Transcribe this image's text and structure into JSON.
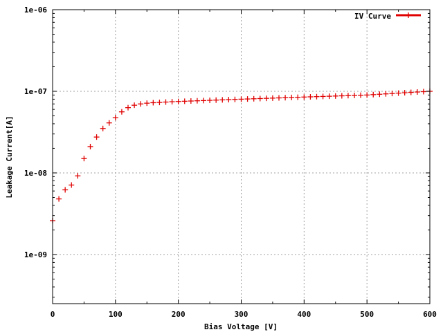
{
  "chart_data": {
    "type": "scatter",
    "title": "",
    "xlabel": "Bias Voltage [V]",
    "ylabel": "Leakage Current[A]",
    "xlim": [
      0,
      600
    ],
    "ylim": [
      2.5e-10,
      1e-06
    ],
    "yscale": "log",
    "grid": true,
    "legend_position": "top-right",
    "x_ticks": [
      0,
      100,
      200,
      300,
      400,
      500,
      600
    ],
    "x_tick_labels": [
      "0",
      "100",
      "200",
      "300",
      "400",
      "500",
      "600"
    ],
    "y_ticks": [
      1e-09,
      1e-08,
      1e-07,
      1e-06
    ],
    "y_tick_labels": [
      "1e-09",
      "1e-08",
      "1e-07",
      "1e-06"
    ],
    "series": [
      {
        "name": "IV Curve",
        "color": "#e00000",
        "marker": "plus",
        "x": [
          0,
          10,
          20,
          30,
          40,
          50,
          60,
          70,
          80,
          90,
          100,
          110,
          120,
          130,
          140,
          150,
          160,
          170,
          180,
          190,
          200,
          210,
          220,
          230,
          240,
          250,
          260,
          270,
          280,
          290,
          300,
          310,
          320,
          330,
          340,
          350,
          360,
          370,
          380,
          390,
          400,
          410,
          420,
          430,
          440,
          450,
          460,
          470,
          480,
          490,
          500,
          510,
          520,
          530,
          540,
          550,
          560,
          570,
          580,
          590,
          600
        ],
        "y": [
          2.6e-09,
          4.8e-09,
          6.2e-09,
          7.1e-09,
          9.2e-09,
          1.5e-08,
          2.1e-08,
          2.75e-08,
          3.5e-08,
          4.1e-08,
          4.75e-08,
          5.6e-08,
          6.3e-08,
          6.75e-08,
          7e-08,
          7.15e-08,
          7.25e-08,
          7.3e-08,
          7.38e-08,
          7.45e-08,
          7.5e-08,
          7.55e-08,
          7.6e-08,
          7.65e-08,
          7.7e-08,
          7.75e-08,
          7.8e-08,
          7.85e-08,
          7.9e-08,
          7.95e-08,
          8e-08,
          8.05e-08,
          8.1e-08,
          8.15e-08,
          8.2e-08,
          8.25e-08,
          8.3e-08,
          8.35e-08,
          8.4e-08,
          8.45e-08,
          8.5e-08,
          8.55e-08,
          8.6e-08,
          8.65e-08,
          8.7e-08,
          8.75e-08,
          8.8e-08,
          8.85e-08,
          8.9e-08,
          8.95e-08,
          9e-08,
          9.1e-08,
          9.2e-08,
          9.3e-08,
          9.4e-08,
          9.5e-08,
          9.6e-08,
          9.7e-08,
          9.8e-08,
          9.9e-08,
          1e-07
        ]
      }
    ]
  }
}
